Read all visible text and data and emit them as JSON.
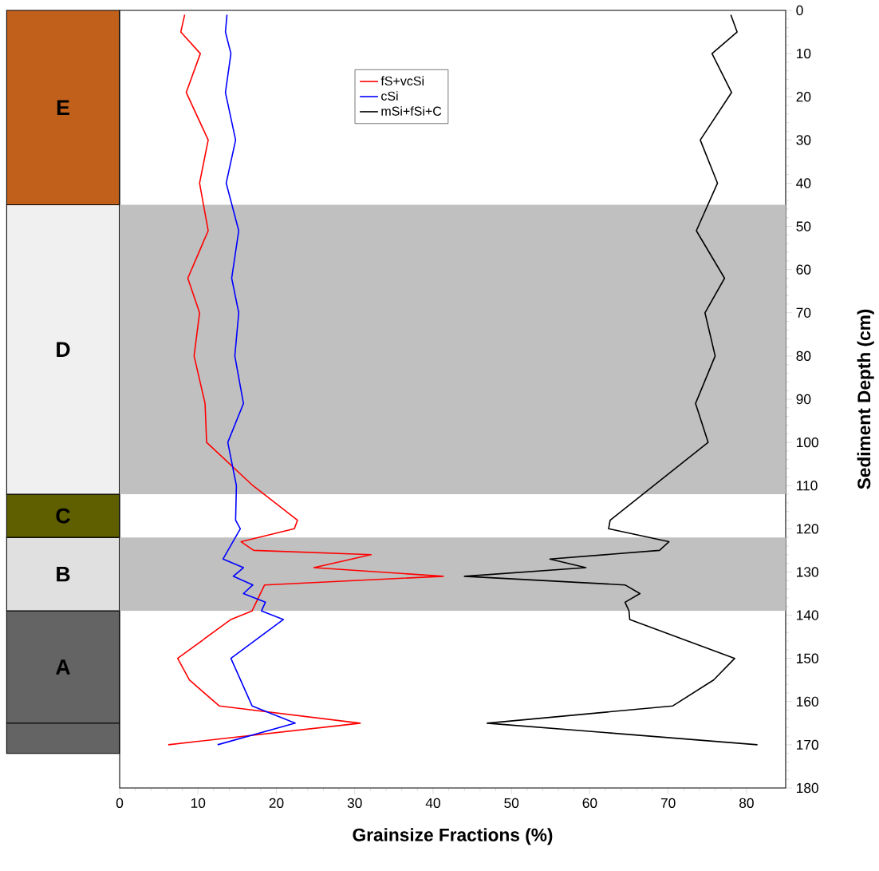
{
  "chart_data": [
    {
      "type": "bar",
      "stacked": true,
      "categories": [
        null
      ],
      "ylim": [
        180,
        0
      ],
      "tick_labels": false,
      "series": [
        {
          "name": "E",
          "color": "#c0601a",
          "values": [
            45
          ]
        },
        {
          "name": "D",
          "color": "#f0f0f0",
          "values": [
            67
          ]
        },
        {
          "name": "C",
          "color": "#5f5f00",
          "values": [
            10
          ]
        },
        {
          "name": "B",
          "color": "#e0e0e0",
          "values": [
            17
          ]
        },
        {
          "name": "A",
          "color": "#646464",
          "values": [
            26
          ]
        },
        {
          "color": "#646464",
          "values": [
            7
          ]
        }
      ]
    },
    {
      "type": "line",
      "xlabel": "Grainsize Fractions (%)",
      "ylabel": "Sediment Depth (cm)",
      "xlim": [
        0,
        85
      ],
      "ylim": [
        180,
        0
      ],
      "xticks": [
        0,
        10,
        20,
        30,
        40,
        50,
        60,
        70,
        80
      ],
      "yticks": [
        0,
        10,
        20,
        30,
        40,
        50,
        60,
        70,
        80,
        90,
        100,
        110,
        120,
        130,
        140,
        150,
        160,
        170,
        180
      ],
      "legend": "top",
      "marker": "none",
      "bands": [
        {
          "axis": "y",
          "from": 45,
          "to": 112,
          "color": "#c0c0c0"
        },
        {
          "axis": "y",
          "from": 122,
          "to": 139,
          "color": "#c0c0c0"
        }
      ],
      "series": [
        {
          "name": "fS+vcSi",
          "color": "#ff0000",
          "x": [
            8.3,
            7.8,
            10.3,
            8.5,
            11.3,
            10.2,
            11.3,
            8.7,
            10.2,
            9.5,
            10.9,
            11.1,
            17.0,
            22.7,
            22.3,
            15.5,
            17.1,
            32.1,
            24.8,
            41.3,
            18.5,
            16.9,
            14.2,
            7.4,
            8.9,
            12.7,
            30.7,
            6.2
          ],
          "values": [
            1,
            5,
            10,
            19,
            30,
            40,
            51,
            62,
            70,
            80,
            91,
            100,
            110,
            118,
            120,
            123,
            125,
            126,
            129,
            131,
            133,
            139,
            141,
            150,
            155,
            161,
            165,
            170
          ]
        },
        {
          "name": "cSi",
          "color": "#0000ff",
          "x": [
            13.7,
            13.5,
            14.2,
            13.5,
            14.8,
            13.6,
            15.2,
            14.3,
            15.2,
            14.7,
            15.8,
            13.8,
            14.9,
            14.8,
            15.4,
            13.2,
            15.8,
            14.5,
            17.0,
            15.8,
            18.6,
            18.1,
            20.9,
            14.2,
            16.9,
            22.4,
            12.5
          ],
          "values": [
            1,
            5,
            10,
            19,
            30,
            40,
            51,
            62,
            70,
            80,
            91,
            100,
            110,
            118,
            120,
            127,
            129,
            131,
            133,
            135,
            137,
            139,
            141,
            150,
            161,
            165,
            170
          ]
        },
        {
          "name": "mSi+fSi+C",
          "color": "#000000",
          "x": [
            78.0,
            78.8,
            75.6,
            78.1,
            74.1,
            76.3,
            73.6,
            77.2,
            74.7,
            76.0,
            73.5,
            75.1,
            62.6,
            62.4,
            70.1,
            68.9,
            54.9,
            59.5,
            44.0,
            64.5,
            66.4,
            64.5,
            65.0,
            65.1,
            78.5,
            75.8,
            70.6,
            46.9,
            81.4
          ],
          "values": [
            1,
            5,
            10,
            19,
            30,
            40,
            51,
            62,
            70,
            80,
            91,
            100,
            118,
            120,
            123,
            125,
            127,
            129,
            131,
            133,
            135,
            137,
            139,
            141,
            150,
            155,
            161,
            165,
            170
          ]
        }
      ]
    }
  ]
}
